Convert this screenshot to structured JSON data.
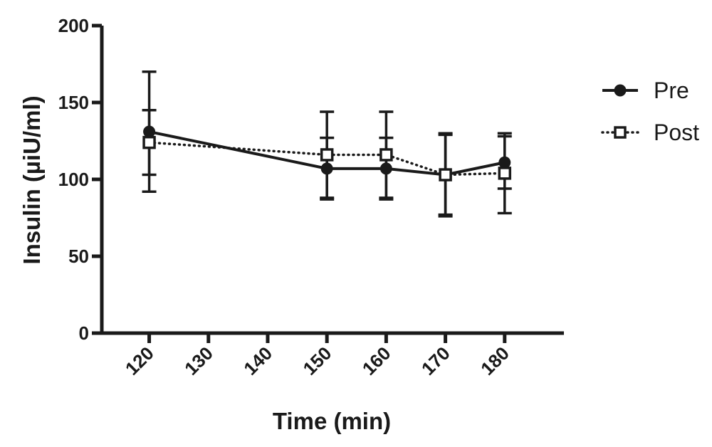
{
  "chart_data": {
    "type": "line",
    "title": "",
    "xlabel": "Time (min)",
    "ylabel": "Insulin (µiU/ml)",
    "xlim": [
      112,
      190
    ],
    "ylim": [
      0,
      200
    ],
    "x_ticks": [
      120,
      130,
      140,
      150,
      160,
      170,
      180
    ],
    "y_ticks": [
      0,
      50,
      100,
      150,
      200
    ],
    "legend_position": "top-right",
    "grid": false,
    "series": [
      {
        "name": "Pre",
        "marker": "filled-circle",
        "line_style": "solid",
        "color": "#1a1a1a",
        "x": [
          120,
          150,
          160,
          170,
          180
        ],
        "y": [
          131,
          107,
          107,
          103,
          111
        ],
        "error": [
          39,
          20,
          20,
          27,
          17
        ]
      },
      {
        "name": "Post",
        "marker": "open-square",
        "line_style": "dotted",
        "color": "#1a1a1a",
        "x": [
          120,
          150,
          160,
          170,
          180
        ],
        "y": [
          124,
          116,
          116,
          103,
          104
        ],
        "error": [
          21,
          28,
          28,
          26,
          26
        ]
      }
    ]
  }
}
